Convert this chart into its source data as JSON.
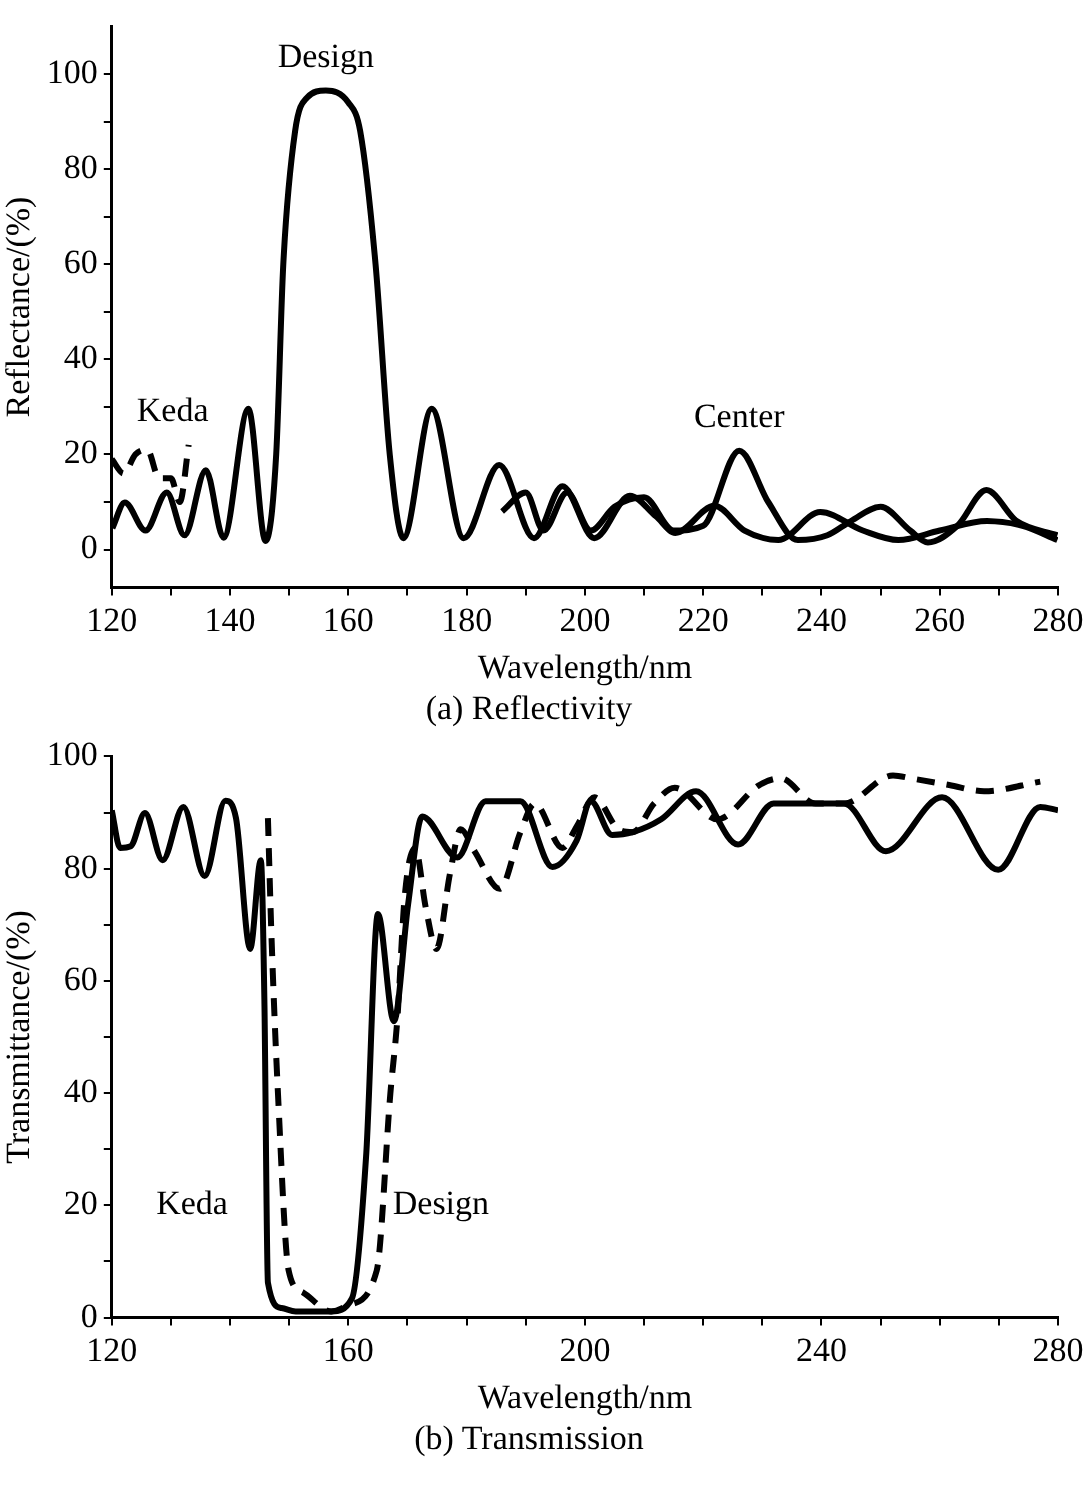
{
  "chart_data": [
    {
      "type": "line",
      "title": "(a) Reflectivity",
      "xlabel": "Wavelength/nm",
      "ylabel": "Reflectance/(%)",
      "xlim": [
        120,
        280
      ],
      "ylim": [
        -8,
        110
      ],
      "xticks": [
        120,
        {
          "value": 130,
          "label": null
        },
        140,
        {
          "value": 150,
          "label": null
        },
        160,
        {
          "value": 170,
          "label": null
        },
        180,
        {
          "value": 190,
          "label": null
        },
        200,
        {
          "value": 210,
          "label": null
        },
        220,
        {
          "value": 230,
          "label": null
        },
        240,
        {
          "value": 250,
          "label": null
        },
        260,
        {
          "value": 270,
          "label": null
        },
        280
      ],
      "yticks": [
        0,
        {
          "value": 10,
          "label": null
        },
        20,
        {
          "value": 30,
          "label": null
        },
        40,
        {
          "value": 50,
          "label": null
        },
        60,
        {
          "value": 70,
          "label": null
        },
        80,
        {
          "value": 90,
          "label": null
        },
        100
      ],
      "series": [
        {
          "name": "Design",
          "color": "#000000",
          "line_style": "solid",
          "x": [
            120.1,
            122.2,
            125.7,
            129.3,
            132.3,
            135.9,
            138.9,
            143.1,
            146,
            147.8,
            149,
            151,
            153,
            156.2,
            160,
            162,
            164.6,
            167,
            169.3,
            174.1,
            179.5,
            185.5,
            191.4,
            196.2,
            201.6,
            207.6,
            212,
            215.3,
            221.9,
            227,
            232.7,
            239.8,
            247,
            253,
            260,
            268,
            274,
            279.9
          ],
          "values": [
            4.5,
            9.9,
            4,
            12,
            3,
            16.7,
            2.5,
            29.6,
            1.8,
            20,
            60,
            88,
            95,
            96.5,
            94,
            88,
            60,
            20,
            2.4,
            29.6,
            2.4,
            17.8,
            2.4,
            13.3,
            2.4,
            11.3,
            7,
            3.5,
            9.2,
            4,
            2,
            7.9,
            4,
            2,
            4,
            6,
            5,
            2
          ]
        },
        {
          "name": "Center",
          "color": "#000000",
          "line_style": "solid",
          "x": [
            186,
            190,
            193,
            197,
            201,
            205,
            210,
            215,
            220,
            226.1,
            231,
            236,
            241,
            245,
            250,
            255,
            258,
            263,
            267.9,
            273,
            279.9
          ],
          "values": [
            8,
            12,
            4,
            12,
            4,
            9,
            11,
            4,
            5,
            20.8,
            10,
            2,
            3,
            6,
            9,
            4,
            1.5,
            5,
            12.5,
            6,
            3
          ]
        },
        {
          "name": "Keda",
          "color": "#000000",
          "line_style": "dashed",
          "x": [
            120,
            122,
            124,
            126,
            128,
            130,
            131.5,
            133
          ],
          "values": [
            19,
            16,
            20,
            21,
            15,
            15,
            10,
            22
          ]
        }
      ]
    },
    {
      "type": "line",
      "title": "(b) Transmission",
      "xlabel": "Wavelength/nm",
      "ylabel": "Transmittance/(%)",
      "xlim": [
        120,
        280
      ],
      "ylim": [
        0,
        100
      ],
      "xticks": [
        120,
        {
          "value": 130,
          "label": null
        },
        160,
        {
          "value": 140,
          "label": null
        },
        {
          "value": 150,
          "label": null
        },
        {
          "value": 170,
          "label": null
        },
        {
          "value": 180,
          "label": null
        },
        {
          "value": 190,
          "label": null
        },
        200,
        {
          "value": 210,
          "label": null
        },
        {
          "value": 220,
          "label": null
        },
        {
          "value": 230,
          "label": null
        },
        240,
        {
          "value": 250,
          "label": null
        },
        {
          "value": 260,
          "label": null
        },
        {
          "value": 270,
          "label": null
        },
        280
      ],
      "yticks": [
        0,
        {
          "value": 10,
          "label": null
        },
        20,
        {
          "value": 30,
          "label": null
        },
        40,
        {
          "value": 50,
          "label": null
        },
        60,
        {
          "value": 70,
          "label": null
        },
        80,
        {
          "value": 90,
          "label": null
        },
        100
      ],
      "series": [
        {
          "name": "Keda",
          "color": "#000000",
          "line_style": "solid",
          "x": [
            120,
            121.4,
            123.2,
            125.6,
            128.6,
            132.1,
            135.7,
            139.2,
            141,
            143.4,
            145.2,
            145.8,
            146.4,
            148.7,
            151.1,
            157.1,
            160.6,
            163,
            165,
            167.7,
            170.1,
            172.5,
            178.4,
            183.2,
            189.1,
            194.5,
            198.6,
            201,
            204.6,
            208.1,
            212.9,
            218.8,
            225.9,
            231.9,
            243.8,
            250.9,
            260.4,
            269.9,
            277,
            280
          ],
          "values": [
            90.4,
            83.7,
            84,
            89.9,
            81.5,
            91,
            78.7,
            92.1,
            89,
            65.7,
            81.5,
            56.7,
            6.2,
            1.7,
            1.1,
            1.1,
            3.4,
            28.7,
            71.9,
            52.8,
            73.6,
            89.3,
            82,
            92,
            92,
            80.3,
            85,
            92,
            86,
            86.5,
            88.8,
            93.8,
            84.3,
            91.6,
            91.6,
            83.1,
            92.7,
            79.8,
            91,
            90.4
          ]
        },
        {
          "name": "Design",
          "color": "#000000",
          "line_style": "dashed",
          "x": [
            146.4,
            147,
            148.1,
            149.9,
            152.3,
            157.1,
            160,
            164.8,
            167.1,
            168.3,
            169.5,
            171.3,
            173.1,
            174.9,
            177.2,
            179,
            181.4,
            185.6,
            189.1,
            191.5,
            196.2,
            198.6,
            201.6,
            205.7,
            208.1,
            211.7,
            215.2,
            222.4,
            229.5,
            233.1,
            239,
            243.8,
            252.1,
            255.6,
            261.6,
            267.5,
            277
          ],
          "values": [
            89,
            68,
            39.9,
            8.4,
            4.5,
            1.1,
            2.2,
            8.4,
            39.9,
            53.4,
            74.7,
            83.7,
            73,
            65.7,
            79.2,
            87,
            83,
            76.4,
            86.5,
            91.6,
            83.7,
            87.5,
            92.7,
            87,
            86.5,
            91.6,
            94.4,
            88.8,
            94.9,
            96.1,
            91.6,
            91.6,
            96.6,
            96,
            94.9,
            93.8,
            95.5
          ]
        }
      ]
    }
  ]
}
